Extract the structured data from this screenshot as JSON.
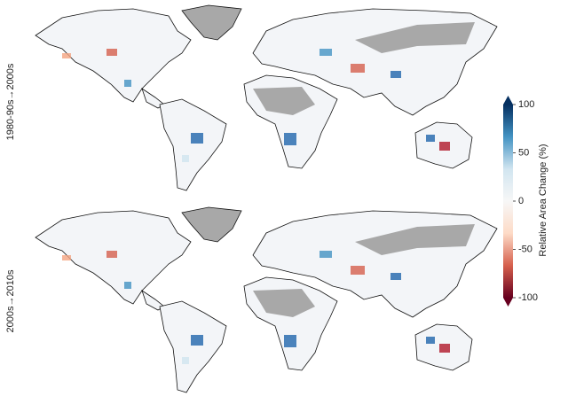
{
  "row_labels": [
    "1980-90s→2000s",
    "2000s→2010s"
  ],
  "colorbar": {
    "label": "Relative Area Change (%)",
    "lim": [
      -100,
      100
    ],
    "ticks": [
      100,
      50,
      0,
      -50,
      -100
    ],
    "colormap": [
      "#67001f",
      "#d6604d",
      "#fddbc7",
      "#f7f7f7",
      "#d1e5f0",
      "#4393c3",
      "#053061"
    ]
  }
}
